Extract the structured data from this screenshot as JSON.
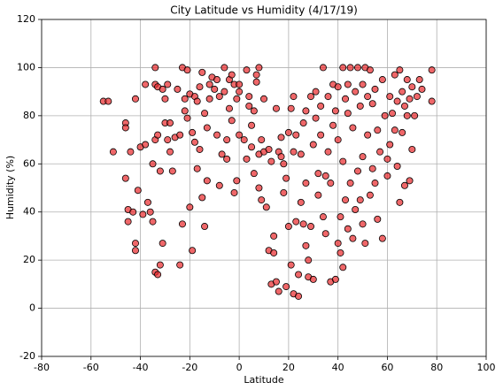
{
  "chart_data": {
    "type": "scatter",
    "title": "City Latitude vs Humidity (4/17/19)",
    "x_label": "Latitude",
    "y_label": "Humidity (%)",
    "color": "#e8262a",
    "edgecolor": "#000000",
    "grid": true,
    "xlim": [
      -80,
      100
    ],
    "xticks": [
      -80,
      -60,
      -40,
      -20,
      0,
      20,
      40,
      60,
      80,
      100
    ],
    "ylim": [
      -20,
      120
    ],
    "yticks": [
      -20,
      0,
      20,
      40,
      60,
      80,
      100,
      120
    ],
    "x": [
      -55,
      -53,
      -51,
      -46,
      -46,
      -46,
      -45,
      -45,
      -44,
      -43,
      -42,
      -42,
      -42,
      -41,
      -40,
      -39,
      -38,
      -38,
      -37,
      -36,
      -35,
      -35,
      -34,
      -34,
      -34,
      -34,
      -33,
      -33,
      -33,
      -32,
      -32,
      -31,
      -31,
      -30,
      -30,
      -29,
      -29,
      -28,
      -28,
      -27,
      -26,
      -25,
      -24,
      -24,
      -23,
      -23,
      -22,
      -22,
      -21,
      -21,
      -20,
      -20,
      -19,
      -19,
      -18,
      -18,
      -17,
      -17,
      -16,
      -16,
      -15,
      -15,
      -14,
      -14,
      -13,
      -13,
      -12,
      -12,
      -11,
      -10,
      -9,
      -9,
      -8,
      -8,
      -7,
      -6,
      -6,
      -5,
      -5,
      -4,
      -4,
      -3,
      -3,
      -2,
      -2,
      -1,
      -1,
      0,
      0,
      0,
      2,
      3,
      3,
      4,
      4,
      5,
      5,
      6,
      6,
      7,
      7,
      8,
      8,
      8,
      9,
      9,
      10,
      10,
      11,
      12,
      12,
      13,
      13,
      14,
      14,
      15,
      15,
      16,
      16,
      17,
      17,
      18,
      18,
      19,
      19,
      20,
      20,
      21,
      21,
      22,
      22,
      22,
      23,
      23,
      24,
      24,
      25,
      25,
      26,
      26,
      27,
      27,
      27,
      28,
      28,
      29,
      29,
      30,
      30,
      31,
      31,
      32,
      32,
      33,
      33,
      34,
      34,
      35,
      35,
      36,
      36,
      37,
      37,
      38,
      38,
      39,
      39,
      40,
      40,
      40,
      41,
      41,
      42,
      42,
      42,
      43,
      43,
      44,
      44,
      44,
      45,
      45,
      46,
      46,
      47,
      47,
      48,
      48,
      49,
      49,
      50,
      50,
      50,
      51,
      51,
      52,
      52,
      53,
      53,
      54,
      54,
      55,
      55,
      56,
      56,
      57,
      58,
      58,
      59,
      60,
      60,
      61,
      61,
      62,
      63,
      63,
      64,
      64,
      65,
      65,
      66,
      66,
      67,
      67,
      68,
      68,
      69,
      69,
      70,
      70,
      71,
      72,
      73,
      74,
      78,
      78
    ],
    "values": [
      86,
      86,
      65,
      77,
      75,
      54,
      41,
      36,
      65,
      40,
      27,
      24,
      87,
      49,
      67,
      39,
      68,
      93,
      44,
      40,
      36,
      60,
      100,
      93,
      70,
      15,
      14,
      92,
      72,
      18,
      57,
      27,
      91,
      87,
      77,
      93,
      70,
      77,
      65,
      57,
      71,
      91,
      72,
      18,
      100,
      35,
      82,
      87,
      99,
      79,
      42,
      89,
      73,
      24,
      88,
      69,
      58,
      86,
      92,
      66,
      98,
      46,
      34,
      81,
      75,
      53,
      87,
      93,
      96,
      91,
      95,
      72,
      88,
      51,
      64,
      90,
      100,
      62,
      70,
      83,
      95,
      97,
      78,
      93,
      48,
      53,
      87,
      72,
      90,
      93,
      70,
      99,
      62,
      84,
      88,
      67,
      76,
      82,
      56,
      94,
      97,
      100,
      64,
      50,
      45,
      70,
      87,
      65,
      42,
      66,
      24,
      10,
      61,
      30,
      23,
      11,
      83,
      7,
      65,
      71,
      63,
      48,
      60,
      9,
      54,
      34,
      73,
      18,
      83,
      6,
      88,
      65,
      36,
      72,
      14,
      5,
      64,
      44,
      35,
      77,
      26,
      52,
      82,
      13,
      20,
      34,
      88,
      68,
      12,
      79,
      90,
      56,
      47,
      72,
      84,
      100,
      38,
      31,
      55,
      65,
      88,
      11,
      52,
      93,
      76,
      12,
      82,
      27,
      70,
      92,
      23,
      38,
      100,
      61,
      17,
      87,
      45,
      93,
      33,
      81,
      100,
      52,
      29,
      75,
      90,
      41,
      100,
      57,
      45,
      84,
      93,
      35,
      63,
      100,
      27,
      72,
      88,
      47,
      99,
      58,
      85,
      91,
      52,
      37,
      74,
      65,
      29,
      95,
      80,
      62,
      55,
      88,
      68,
      81,
      74,
      97,
      59,
      86,
      99,
      44,
      90,
      73,
      51,
      84,
      95,
      80,
      87,
      53,
      66,
      92,
      80,
      88,
      95,
      91,
      99,
      86
    ]
  }
}
